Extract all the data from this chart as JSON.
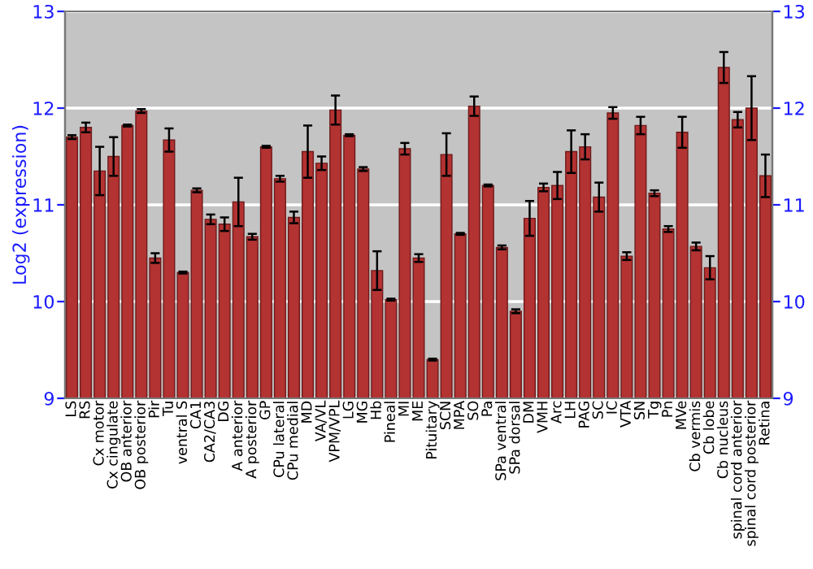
{
  "chart_data": {
    "type": "bar",
    "ylabel": "Log2 (expression)",
    "categories": [
      "LS",
      "RS",
      "Cx motor",
      "Cx cingulate",
      "OB anterior",
      "OB posterior",
      "Pir",
      "Tu",
      "ventral S",
      "CA1",
      "CA2/CA3",
      "DG",
      "A anterior",
      "A posterior",
      "GP",
      "CPu lateral",
      "CPu medial",
      "MD",
      "VA/VL",
      "VPM/VPL",
      "LG",
      "MG",
      "Hb",
      "Pineal",
      "MI",
      "ME",
      "Pituitary",
      "SCN",
      "MPA",
      "SO",
      "Pa",
      "SPa ventral",
      "SPa dorsal",
      "DM",
      "VMH",
      "Arc",
      "LH",
      "PAG",
      "SC",
      "IC",
      "VTA",
      "SN",
      "Tg",
      "Pn",
      "MVe",
      "Cb vermis",
      "Cb lobe",
      "Cb nucleus",
      "spinal cord anterior",
      "spinal cord posterior",
      "Retina"
    ],
    "values": [
      11.7,
      11.8,
      11.35,
      11.5,
      11.82,
      11.97,
      10.45,
      11.67,
      10.3,
      11.15,
      10.85,
      10.8,
      11.03,
      10.67,
      11.6,
      11.27,
      10.87,
      11.55,
      11.43,
      11.98,
      11.72,
      11.37,
      10.32,
      10.02,
      11.58,
      10.45,
      9.4,
      11.52,
      10.7,
      12.02,
      11.2,
      10.56,
      9.9,
      10.86,
      11.18,
      11.2,
      11.55,
      11.6,
      11.08,
      11.95,
      10.47,
      11.82,
      11.12,
      10.75,
      11.75,
      10.57,
      10.35,
      12.42,
      11.88,
      12.0,
      11.3
    ],
    "errors": [
      0.02,
      0.05,
      0.25,
      0.2,
      0.01,
      0.02,
      0.05,
      0.12,
      0.01,
      0.02,
      0.05,
      0.07,
      0.25,
      0.03,
      0.01,
      0.03,
      0.06,
      0.27,
      0.07,
      0.15,
      0.01,
      0.02,
      0.2,
      0.01,
      0.06,
      0.04,
      0.01,
      0.22,
      0.01,
      0.1,
      0.01,
      0.02,
      0.02,
      0.18,
      0.04,
      0.14,
      0.22,
      0.13,
      0.15,
      0.06,
      0.04,
      0.09,
      0.03,
      0.03,
      0.16,
      0.04,
      0.12,
      0.16,
      0.08,
      0.33,
      0.22
    ],
    "color": "#b33232",
    "ylim": [
      9,
      13
    ],
    "yticks": [
      9,
      10,
      11,
      12,
      13
    ],
    "y2lim": [
      9,
      13
    ],
    "y2ticks": [
      9,
      10,
      11,
      12,
      13
    ],
    "grid": "y"
  }
}
